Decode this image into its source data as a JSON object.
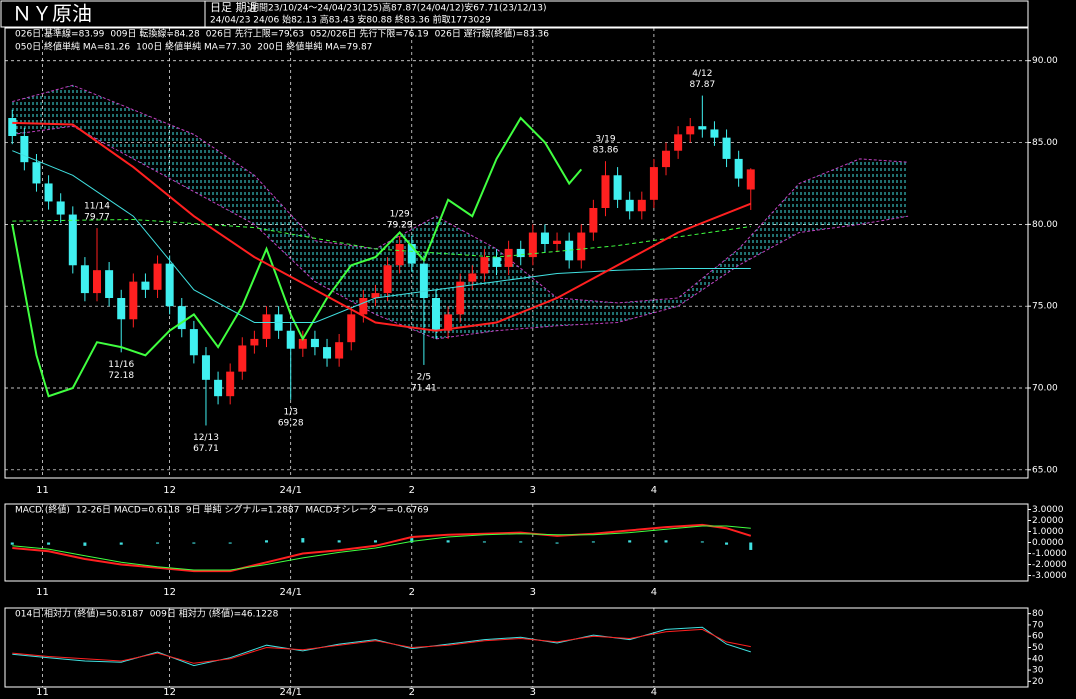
{
  "header": {
    "title": "ＮＹ原油",
    "period_type": "日足 期近",
    "info1": "期間23/10/24～24/04/23(125)高87.87(24/04/12)安67.71(23/12/13)",
    "info2": "24/04/23 24/06 始82.13 高83.43 安80.88 終83.36 前取1773029"
  },
  "chart_data": [
    {
      "type": "candlestick",
      "legend": [
        [
          {
            "text": "026日 基準線=83.99",
            "color": "#40e0e0"
          },
          {
            "text": "009日 転換線=84.28",
            "color": "#ff40ff"
          },
          {
            "text": "026日 先行上限=79.63",
            "color": "#ff40ff"
          },
          {
            "text": "052/026日 先行下限=76.19",
            "color": "#ff40ff"
          },
          {
            "text": "026日 遅行線(終値)=83.36",
            "color": "#40ff40"
          }
        ],
        [
          {
            "text": "050日 終値単純 MA=81.26",
            "color": "#ff3030"
          },
          {
            "text": "100日 終値単純 MA=77.30",
            "color": "#40e0e0"
          },
          {
            "text": "200日 終値単純 MA=79.87",
            "color": "#40ff40"
          }
        ]
      ],
      "up_color": "#ff2020",
      "down_color": "#40f0f0",
      "open": [
        86.5,
        85.4,
        83.8,
        82.5,
        81.4,
        80.6,
        77.5,
        75.8,
        77.2,
        75.5,
        74.2,
        76.5,
        76.0,
        77.6,
        75.0,
        73.6,
        72.0,
        70.5,
        69.5,
        71.0,
        72.6,
        73.0,
        74.5,
        73.5,
        72.4,
        73.0,
        72.5,
        71.8,
        72.8,
        74.5,
        75.5,
        75.8,
        77.5,
        78.8,
        77.6,
        75.5,
        73.5,
        74.5,
        76.5,
        77.0,
        78.0,
        77.4,
        78.5,
        78.0,
        79.5,
        78.8,
        79.0,
        77.8,
        79.5,
        81.0,
        83.0,
        81.5,
        80.8,
        81.5,
        83.5,
        84.5,
        85.5,
        86.0,
        85.8,
        85.3,
        84.0,
        82.13
      ],
      "high": [
        87.0,
        85.9,
        84.3,
        83.0,
        81.9,
        81.1,
        78.0,
        79.77,
        77.7,
        76.0,
        77.0,
        77.0,
        78.1,
        78.1,
        75.5,
        74.1,
        72.5,
        71.0,
        71.5,
        73.1,
        73.5,
        75.0,
        75.0,
        74.0,
        73.5,
        73.5,
        73.0,
        73.3,
        75.0,
        76.0,
        76.3,
        78.0,
        79.29,
        79.3,
        78.1,
        76.0,
        75.0,
        77.0,
        77.5,
        78.5,
        78.5,
        79.0,
        79.0,
        80.0,
        80.0,
        79.5,
        79.5,
        80.0,
        81.5,
        83.86,
        83.5,
        82.0,
        82.0,
        84.0,
        85.0,
        86.0,
        86.5,
        87.87,
        86.3,
        85.8,
        84.5,
        83.43
      ],
      "low": [
        84.9,
        83.3,
        82.0,
        80.9,
        80.1,
        77.0,
        75.3,
        75.3,
        75.0,
        72.18,
        73.7,
        75.5,
        75.5,
        74.5,
        73.1,
        71.5,
        67.71,
        69.0,
        69.0,
        70.5,
        72.1,
        72.5,
        73.0,
        69.28,
        71.9,
        72.0,
        71.3,
        71.3,
        72.3,
        74.0,
        75.0,
        75.3,
        77.0,
        77.1,
        71.41,
        73.0,
        73.0,
        74.0,
        76.0,
        76.5,
        76.9,
        76.9,
        77.5,
        77.5,
        78.3,
        78.3,
        77.3,
        77.3,
        79.0,
        80.5,
        81.0,
        80.3,
        80.3,
        81.0,
        83.0,
        84.0,
        85.0,
        85.3,
        84.8,
        83.5,
        82.3,
        80.88
      ],
      "close": [
        85.4,
        83.8,
        82.5,
        81.4,
        80.6,
        77.5,
        75.8,
        77.2,
        75.5,
        74.2,
        76.5,
        76.0,
        77.6,
        75.0,
        73.6,
        72.0,
        70.5,
        69.5,
        71.0,
        72.6,
        73.0,
        74.5,
        73.5,
        72.4,
        73.0,
        72.5,
        71.8,
        72.8,
        74.5,
        75.5,
        75.8,
        77.5,
        78.8,
        77.6,
        75.5,
        73.5,
        74.5,
        76.5,
        77.0,
        78.0,
        77.4,
        78.5,
        78.0,
        79.5,
        78.8,
        79.0,
        77.8,
        79.5,
        81.0,
        83.0,
        81.5,
        80.8,
        81.5,
        83.5,
        84.5,
        85.5,
        86.0,
        85.8,
        85.3,
        84.0,
        82.8,
        83.36
      ],
      "cloud": {
        "color": "#40e0e0",
        "edge": "#c040c0",
        "upper": {
          "x": [
            0,
            5,
            10,
            15,
            20,
            25,
            30,
            35,
            40,
            45,
            50,
            55,
            60,
            65,
            70,
            74
          ],
          "values": [
            87.5,
            88.5,
            87.0,
            85.5,
            83.0,
            79.0,
            78.5,
            80.5,
            78.5,
            75.5,
            75.2,
            75.5,
            78.5,
            82.5,
            84.0,
            83.8
          ]
        },
        "lower": {
          "x": [
            0,
            5,
            10,
            15,
            20,
            25,
            30,
            35,
            40,
            45,
            50,
            55,
            60,
            65,
            70,
            74
          ],
          "values": [
            85.5,
            86.0,
            84.0,
            82.0,
            80.0,
            76.5,
            74.5,
            73.0,
            73.5,
            73.8,
            74.0,
            75.0,
            77.5,
            79.5,
            80.0,
            80.5
          ]
        }
      },
      "lines": [
        {
          "color": "#40ff40",
          "width": 2,
          "dash": false,
          "x": [
            0,
            2,
            3,
            5,
            7,
            9,
            11,
            13,
            15,
            17,
            19,
            21,
            23,
            24,
            26,
            28,
            30,
            32,
            34,
            36,
            38,
            40,
            42,
            44,
            46,
            47
          ],
          "values": [
            80.0,
            72.0,
            69.5,
            70.0,
            72.8,
            72.5,
            72.0,
            73.5,
            74.5,
            72.5,
            75.0,
            78.5,
            74.5,
            73.0,
            75.5,
            77.5,
            78.0,
            79.5,
            77.8,
            81.5,
            80.5,
            84.0,
            86.5,
            85.0,
            82.5,
            83.36
          ]
        },
        {
          "color": "#40ff40",
          "width": 1,
          "dash": true,
          "x": [
            0,
            10,
            20,
            30,
            40,
            50,
            61
          ],
          "values": [
            80.2,
            80.3,
            79.8,
            78.5,
            78.0,
            78.7,
            79.87
          ]
        },
        {
          "color": "#40e0e0",
          "width": 1,
          "dash": false,
          "x": [
            0,
            5,
            10,
            15,
            20,
            25,
            30,
            35,
            40,
            45,
            50,
            55,
            61
          ],
          "values": [
            84.5,
            83.0,
            80.5,
            76.0,
            74.0,
            74.0,
            75.5,
            76.0,
            76.5,
            77.0,
            77.2,
            77.3,
            77.3
          ]
        },
        {
          "color": "#ff2020",
          "width": 2,
          "dash": false,
          "x": [
            0,
            5,
            10,
            15,
            20,
            25,
            30,
            35,
            40,
            45,
            50,
            55,
            61
          ],
          "values": [
            86.2,
            86.1,
            83.5,
            80.5,
            78.0,
            76.0,
            74.0,
            73.5,
            74.0,
            75.5,
            77.5,
            79.5,
            81.26
          ]
        }
      ],
      "annotations": [
        {
          "date": "11/14",
          "price": 79.77,
          "color": "#ff3030"
        },
        {
          "date": "11/16",
          "price": 72.18,
          "color": "#40e0e0"
        },
        {
          "date": "12/13",
          "price": 67.71,
          "color": "#40e0e0"
        },
        {
          "date": "1/3",
          "price": 69.28,
          "color": "#40e0e0"
        },
        {
          "date": "1/29",
          "price": 79.29,
          "color": "#ff3030"
        },
        {
          "date": "2/5",
          "price": 71.41,
          "color": "#40e0e0"
        },
        {
          "date": "3/19",
          "price": 83.86,
          "color": "#ff3030"
        },
        {
          "date": "4/12",
          "price": 87.87,
          "color": "#ff3030"
        }
      ],
      "xlim": [
        -0.6,
        83.9
      ],
      "xticks": [
        {
          "value": 2.5,
          "label": "11"
        },
        {
          "value": 13,
          "label": "12"
        },
        {
          "value": 23,
          "label": "24/1"
        },
        {
          "value": 33,
          "label": "2"
        },
        {
          "value": 43,
          "label": "3"
        },
        {
          "value": 53,
          "label": "4"
        }
      ],
      "ylim": [
        64.5,
        92
      ],
      "yticks": [
        {
          "value": 65,
          "label": "65.00"
        },
        {
          "value": 70,
          "label": "70.00"
        },
        {
          "value": 75,
          "label": "75.00"
        },
        {
          "value": 80,
          "label": "80.00"
        },
        {
          "value": 85,
          "label": "85.00"
        },
        {
          "value": 90,
          "label": "90.00"
        }
      ],
      "grid": true
    },
    {
      "type": "macd",
      "legend": [
        [
          {
            "text": "MACD (終値)",
            "color": "#ffffff"
          },
          {
            "text": "12-26日 MACD=0.6118",
            "color": "#ff3030"
          },
          {
            "text": "9日 単純 シグナル=1.2887",
            "color": "#40ff40"
          },
          {
            "text": "MACDオシレーター=-0.6769",
            "color": "#40e0e0"
          }
        ]
      ],
      "x": [
        0,
        3,
        6,
        9,
        12,
        15,
        18,
        21,
        24,
        27,
        30,
        33,
        36,
        39,
        42,
        45,
        48,
        51,
        54,
        57,
        59,
        61
      ],
      "series": [
        {
          "color": "#ff2020",
          "values": [
            -0.5,
            -0.8,
            -1.5,
            -2.0,
            -2.3,
            -2.6,
            -2.6,
            -1.8,
            -1.0,
            -0.7,
            -0.3,
            0.5,
            0.7,
            0.8,
            0.9,
            0.6,
            0.8,
            1.1,
            1.4,
            1.6,
            1.3,
            0.6118
          ]
        },
        {
          "color": "#40ff40",
          "values": [
            -0.3,
            -0.6,
            -1.2,
            -1.8,
            -2.2,
            -2.5,
            -2.5,
            -2.0,
            -1.4,
            -0.9,
            -0.5,
            0.1,
            0.5,
            0.7,
            0.8,
            0.7,
            0.7,
            0.9,
            1.2,
            1.5,
            1.5,
            1.2887
          ]
        }
      ],
      "histogram": {
        "color": "#40e0e0",
        "values": [
          -0.2,
          -0.2,
          -0.3,
          -0.2,
          -0.1,
          -0.1,
          -0.1,
          0.2,
          0.4,
          0.2,
          0.2,
          0.4,
          0.2,
          0.1,
          0.1,
          -0.1,
          0.1,
          0.2,
          0.2,
          0.1,
          -0.2,
          -0.6769
        ]
      },
      "ylim": [
        -3.5,
        3.5
      ],
      "yticks": [
        {
          "value": 3,
          "label": "3.0000"
        },
        {
          "value": 2,
          "label": "2.0000"
        },
        {
          "value": 1,
          "label": "1.0000"
        },
        {
          "value": 0,
          "label": "0.0000"
        },
        {
          "value": -1,
          "label": "-1.0000"
        },
        {
          "value": -2,
          "label": "-2.0000"
        },
        {
          "value": -3,
          "label": "-3.0000"
        }
      ]
    },
    {
      "type": "line",
      "legend": [
        [
          {
            "text": "014日 相対力 (終値)=50.8187",
            "color": "#ff3030"
          },
          {
            "text": "009日 相対力 (終値)=46.1228",
            "color": "#40e0e0"
          }
        ]
      ],
      "x": [
        0,
        3,
        6,
        9,
        12,
        15,
        18,
        21,
        24,
        27,
        30,
        33,
        36,
        39,
        42,
        45,
        48,
        51,
        54,
        57,
        59,
        61
      ],
      "series": [
        {
          "color": "#40e0e0",
          "values": [
            44,
            41,
            38,
            37,
            46,
            34,
            41,
            52,
            47,
            53,
            57,
            49,
            53,
            57,
            59,
            54,
            61,
            57,
            66,
            68,
            53,
            46.1228
          ]
        },
        {
          "color": "#ff2020",
          "values": [
            45,
            42,
            40,
            38,
            45,
            36,
            40,
            50,
            48,
            52,
            56,
            50,
            52,
            56,
            58,
            55,
            60,
            58,
            64,
            66,
            55,
            50.8187
          ]
        }
      ],
      "ylim": [
        15,
        85
      ],
      "yticks": [
        80,
        70,
        60,
        50,
        40,
        30,
        20
      ]
    }
  ]
}
